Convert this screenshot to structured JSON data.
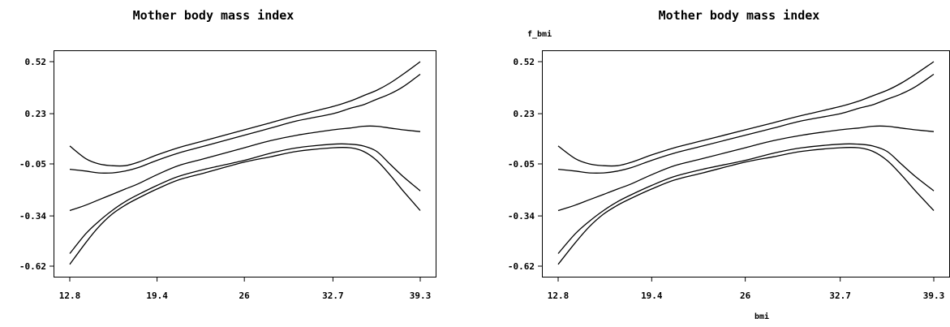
{
  "chart_data": [
    {
      "type": "line",
      "title": "Mother body mass index",
      "xlabel": "",
      "ylabel": "",
      "xlim": [
        12.8,
        39.3
      ],
      "ylim": [
        -0.62,
        0.52
      ],
      "xticks": [
        "12.8",
        "19.4",
        "26",
        "32.7",
        "39.3"
      ],
      "yticks": [
        "0.52",
        "0.23",
        "-0.05",
        "-0.34",
        "-0.62"
      ],
      "grid": false,
      "x": [
        12.8,
        14.0,
        15.0,
        16.0,
        17.0,
        18.0,
        19.4,
        21.0,
        23.0,
        26.0,
        28.0,
        30.0,
        32.7,
        34.0,
        35.0,
        36.0,
        37.0,
        38.0,
        39.3
      ],
      "series": [
        {
          "values": [
            0.05,
            -0.02,
            -0.05,
            -0.06,
            -0.06,
            -0.04,
            0.0,
            0.04,
            0.08,
            0.14,
            0.18,
            0.22,
            0.27,
            0.3,
            0.33,
            0.36,
            0.4,
            0.45,
            0.52
          ]
        },
        {
          "values": [
            -0.08,
            -0.09,
            -0.1,
            -0.1,
            -0.09,
            -0.07,
            -0.03,
            0.01,
            0.05,
            0.11,
            0.15,
            0.19,
            0.23,
            0.26,
            0.28,
            0.31,
            0.34,
            0.38,
            0.45
          ]
        },
        {
          "values": [
            -0.31,
            -0.28,
            -0.25,
            -0.22,
            -0.19,
            -0.16,
            -0.11,
            -0.06,
            -0.02,
            0.04,
            0.08,
            0.11,
            0.14,
            0.15,
            0.16,
            0.16,
            0.15,
            0.14,
            0.13
          ]
        },
        {
          "values": [
            -0.55,
            -0.44,
            -0.37,
            -0.31,
            -0.26,
            -0.22,
            -0.17,
            -0.12,
            -0.08,
            -0.03,
            0.01,
            0.04,
            0.06,
            0.06,
            0.05,
            0.02,
            -0.05,
            -0.12,
            -0.2
          ]
        },
        {
          "values": [
            -0.61,
            -0.49,
            -0.4,
            -0.33,
            -0.28,
            -0.24,
            -0.19,
            -0.14,
            -0.1,
            -0.04,
            -0.01,
            0.02,
            0.04,
            0.04,
            0.02,
            -0.03,
            -0.11,
            -0.2,
            -0.31
          ]
        }
      ]
    },
    {
      "type": "line",
      "title": "Mother body mass index",
      "xlabel": "bmi",
      "ylabel": "f_bmi",
      "xlim": [
        12.8,
        39.3
      ],
      "ylim": [
        -0.62,
        0.52
      ],
      "xticks": [
        "12.8",
        "19.4",
        "26",
        "32.7",
        "39.3"
      ],
      "yticks": [
        "0.52",
        "0.23",
        "-0.05",
        "-0.34",
        "-0.62"
      ],
      "grid": false,
      "x": [
        12.8,
        14.0,
        15.0,
        16.0,
        17.0,
        18.0,
        19.4,
        21.0,
        23.0,
        26.0,
        28.0,
        30.0,
        32.7,
        34.0,
        35.0,
        36.0,
        37.0,
        38.0,
        39.3
      ],
      "series": [
        {
          "values": [
            0.05,
            -0.02,
            -0.05,
            -0.06,
            -0.06,
            -0.04,
            0.0,
            0.04,
            0.08,
            0.14,
            0.18,
            0.22,
            0.27,
            0.3,
            0.33,
            0.36,
            0.4,
            0.45,
            0.52
          ]
        },
        {
          "values": [
            -0.08,
            -0.09,
            -0.1,
            -0.1,
            -0.09,
            -0.07,
            -0.03,
            0.01,
            0.05,
            0.11,
            0.15,
            0.19,
            0.23,
            0.26,
            0.28,
            0.31,
            0.34,
            0.38,
            0.45
          ]
        },
        {
          "values": [
            -0.31,
            -0.28,
            -0.25,
            -0.22,
            -0.19,
            -0.16,
            -0.11,
            -0.06,
            -0.02,
            0.04,
            0.08,
            0.11,
            0.14,
            0.15,
            0.16,
            0.16,
            0.15,
            0.14,
            0.13
          ]
        },
        {
          "values": [
            -0.55,
            -0.44,
            -0.37,
            -0.31,
            -0.26,
            -0.22,
            -0.17,
            -0.12,
            -0.08,
            -0.03,
            0.01,
            0.04,
            0.06,
            0.06,
            0.05,
            0.02,
            -0.05,
            -0.12,
            -0.2
          ]
        },
        {
          "values": [
            -0.61,
            -0.49,
            -0.4,
            -0.33,
            -0.28,
            -0.24,
            -0.19,
            -0.14,
            -0.1,
            -0.04,
            -0.01,
            0.02,
            0.04,
            0.04,
            0.02,
            -0.03,
            -0.11,
            -0.2,
            -0.31
          ]
        }
      ]
    }
  ]
}
